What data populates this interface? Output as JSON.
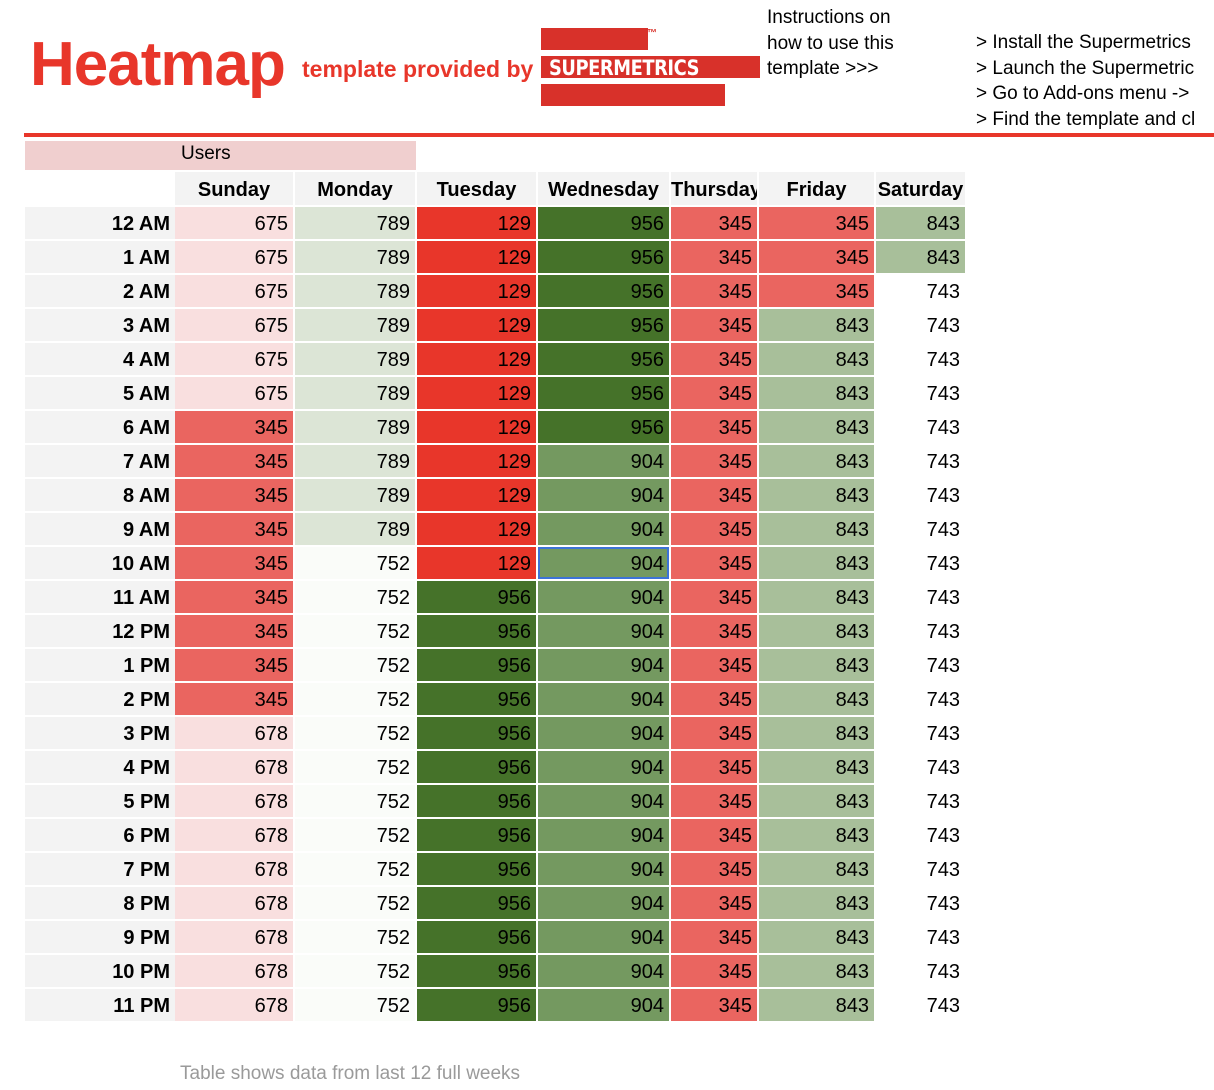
{
  "header": {
    "title": "Heatmap",
    "subtitle": "template provided by",
    "logo_text": "SUPERMETRICS",
    "logo_tm": "™",
    "instructions": "Instructions on how to use this template >>>",
    "steps": [
      "> Install the Supermetrics",
      "> Launch the Supermetric",
      "> Go to Add-ons menu ->",
      "> Find the template and cl"
    ]
  },
  "colors": {
    "brand_red": "#e8362a",
    "selection": "#3d73d6"
  },
  "metric_label": "Users",
  "days": [
    "Sunday",
    "Monday",
    "Tuesday",
    "Wednesday",
    "Thursday",
    "Friday",
    "Saturday"
  ],
  "hours": [
    "12 AM",
    "1 AM",
    "2 AM",
    "3 AM",
    "4 AM",
    "5 AM",
    "6 AM",
    "7 AM",
    "8 AM",
    "9 AM",
    "10 AM",
    "11 AM",
    "12 PM",
    "1 PM",
    "2 PM",
    "3 PM",
    "4 PM",
    "5 PM",
    "6 PM",
    "7 PM",
    "8 PM",
    "9 PM",
    "10 PM",
    "11 PM"
  ],
  "values": [
    [
      675,
      789,
      129,
      956,
      345,
      345,
      843
    ],
    [
      675,
      789,
      129,
      956,
      345,
      345,
      843
    ],
    [
      675,
      789,
      129,
      956,
      345,
      345,
      743
    ],
    [
      675,
      789,
      129,
      956,
      345,
      843,
      743
    ],
    [
      675,
      789,
      129,
      956,
      345,
      843,
      743
    ],
    [
      675,
      789,
      129,
      956,
      345,
      843,
      743
    ],
    [
      345,
      789,
      129,
      956,
      345,
      843,
      743
    ],
    [
      345,
      789,
      129,
      904,
      345,
      843,
      743
    ],
    [
      345,
      789,
      129,
      904,
      345,
      843,
      743
    ],
    [
      345,
      789,
      129,
      904,
      345,
      843,
      743
    ],
    [
      345,
      752,
      129,
      904,
      345,
      843,
      743
    ],
    [
      345,
      752,
      956,
      904,
      345,
      843,
      743
    ],
    [
      345,
      752,
      956,
      904,
      345,
      843,
      743
    ],
    [
      345,
      752,
      956,
      904,
      345,
      843,
      743
    ],
    [
      345,
      752,
      956,
      904,
      345,
      843,
      743
    ],
    [
      678,
      752,
      956,
      904,
      345,
      843,
      743
    ],
    [
      678,
      752,
      956,
      904,
      345,
      843,
      743
    ],
    [
      678,
      752,
      956,
      904,
      345,
      843,
      743
    ],
    [
      678,
      752,
      956,
      904,
      345,
      843,
      743
    ],
    [
      678,
      752,
      956,
      904,
      345,
      843,
      743
    ],
    [
      678,
      752,
      956,
      904,
      345,
      843,
      743
    ],
    [
      678,
      752,
      956,
      904,
      345,
      843,
      743
    ],
    [
      678,
      752,
      956,
      904,
      345,
      843,
      743
    ],
    [
      678,
      752,
      956,
      904,
      345,
      843,
      743
    ]
  ],
  "value_colors": {
    "129": "#e8362a",
    "345": "#ea6560",
    "675": "#f9dfdf",
    "678": "#f9dfdf",
    "743": "#ffffff",
    "752": "#fafcf9",
    "789": "#dce5d6",
    "843": "#a8bf9a",
    "904": "#749960",
    "956": "#457229"
  },
  "selected_cell": {
    "hour": "10 AM",
    "day": "Wednesday"
  },
  "footnote": "Table shows data from last 12 full weeks"
}
